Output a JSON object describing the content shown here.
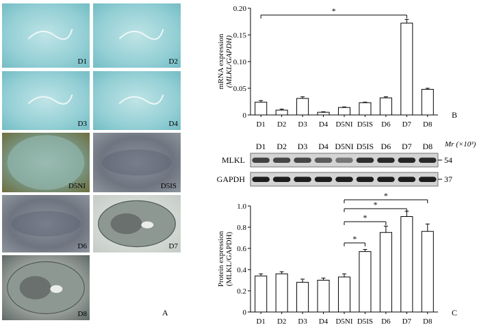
{
  "panel_a": {
    "label": "A",
    "images": [
      {
        "label": "D1",
        "tone": "cyan"
      },
      {
        "label": "D2",
        "tone": "cyan"
      },
      {
        "label": "D3",
        "tone": "cyan"
      },
      {
        "label": "D4",
        "tone": "cyan"
      },
      {
        "label": "D5NI",
        "tone": "olive"
      },
      {
        "label": "D5IS",
        "tone": "grey"
      },
      {
        "label": "D6",
        "tone": "grey"
      },
      {
        "label": "D7",
        "tone": "mixed"
      },
      {
        "label": "D8",
        "tone": "mixed"
      }
    ]
  },
  "blot": {
    "mr_label": "Mr (×10³)",
    "rows": [
      {
        "label": "MLKL",
        "kda": "54",
        "intensity": [
          0.75,
          0.72,
          0.72,
          0.6,
          0.45,
          0.85,
          0.88,
          0.9,
          0.88
        ]
      },
      {
        "label": "GAPDH",
        "kda": "37",
        "intensity": [
          0.95,
          0.95,
          0.95,
          0.95,
          0.95,
          0.95,
          0.95,
          0.95,
          0.95
        ]
      }
    ]
  },
  "chart_data": [
    {
      "panel": "B",
      "type": "bar",
      "categories": [
        "D1",
        "D2",
        "D3",
        "D4",
        "D5NI",
        "D5IS",
        "D6",
        "D7",
        "D8"
      ],
      "values": [
        0.024,
        0.009,
        0.031,
        0.005,
        0.014,
        0.023,
        0.032,
        0.172,
        0.048
      ],
      "errors": [
        0.003,
        0.002,
        0.003,
        0.001,
        0.001,
        0.001,
        0.002,
        0.007,
        0.002
      ],
      "ylabel_line1": "mRNA expression",
      "ylabel_line2": "(MLKL/GAPDH)",
      "yticks": [
        "0",
        "0.05",
        "0.10",
        "0.15",
        "0.20"
      ],
      "ylim": [
        0,
        0.2
      ],
      "significance": [
        {
          "from": "D1",
          "to": "D7",
          "label": "*"
        }
      ]
    },
    {
      "panel": "C",
      "type": "bar",
      "categories": [
        "D1",
        "D2",
        "D3",
        "D4",
        "D5NI",
        "D5IS",
        "D6",
        "D7",
        "D8"
      ],
      "values": [
        0.34,
        0.36,
        0.28,
        0.3,
        0.33,
        0.57,
        0.75,
        0.9,
        0.76
      ],
      "errors": [
        0.02,
        0.02,
        0.03,
        0.02,
        0.03,
        0.02,
        0.06,
        0.05,
        0.07
      ],
      "ylabel_line1": "Protein expression",
      "ylabel_line2": "(MLKL/GAPDH)",
      "yticks": [
        "0",
        "0.2",
        "0.4",
        "0.6",
        "0.8",
        "1.0"
      ],
      "ylim": [
        0,
        1.0
      ],
      "significance": [
        {
          "from": "D5NI",
          "to": "D5IS",
          "label": "*"
        },
        {
          "from": "D5NI",
          "to": "D6",
          "label": "*"
        },
        {
          "from": "D5NI",
          "to": "D7",
          "label": "*"
        },
        {
          "from": "D5NI",
          "to": "D8",
          "label": "*"
        }
      ]
    }
  ]
}
